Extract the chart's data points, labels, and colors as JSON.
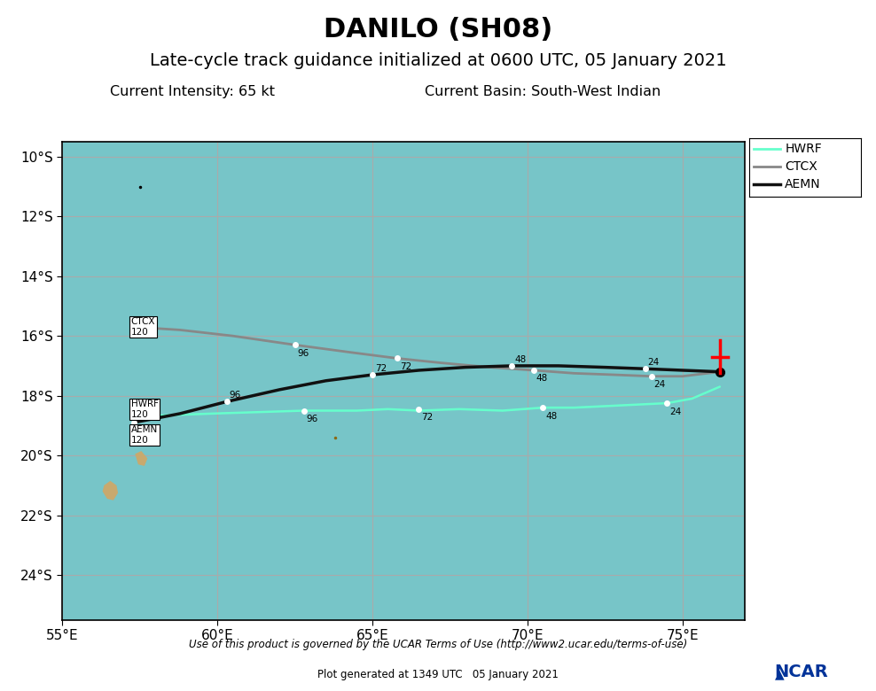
{
  "title": "DANILO (SH08)",
  "subtitle": "Late-cycle track guidance initialized at 0600 UTC, 05 January 2021",
  "intensity_label": "Current Intensity: 65 kt",
  "basin_label": "Current Basin: South-West Indian",
  "footer1": "Use of this product is governed by the UCAR Terms of Use (http://www2.ucar.edu/terms-of-use)",
  "footer2": "Plot generated at 1349 UTC   05 January 2021",
  "xlim": [
    55,
    77
  ],
  "ylim": [
    -25.5,
    -9.5
  ],
  "xticks": [
    55,
    60,
    65,
    70,
    75
  ],
  "yticks": [
    -10,
    -12,
    -14,
    -16,
    -18,
    -20,
    -22,
    -24
  ],
  "bg_color": "#77C5C8",
  "grid_color": "#aaaaaa",
  "HWRF": {
    "lons": [
      57.3,
      58.5,
      59.8,
      61.3,
      62.8,
      64.5,
      65.5,
      66.5,
      67.8,
      69.2,
      70.5,
      71.5,
      72.5,
      73.5,
      74.5,
      75.3,
      76.2
    ],
    "lats": [
      -18.7,
      -18.65,
      -18.6,
      -18.55,
      -18.5,
      -18.5,
      -18.45,
      -18.5,
      -18.45,
      -18.5,
      -18.4,
      -18.4,
      -18.35,
      -18.3,
      -18.25,
      -18.1,
      -17.7
    ],
    "color": "#66FFCC",
    "lw": 1.8,
    "label": "HWRF",
    "hour_lons": [
      57.3,
      62.8,
      66.5,
      70.5,
      74.5
    ],
    "hour_lats": [
      -18.7,
      -18.5,
      -18.45,
      -18.4,
      -18.25
    ],
    "hour_labels": [
      120,
      96,
      72,
      48,
      24
    ],
    "label_offset_x": [
      2,
      2,
      2,
      2,
      2
    ],
    "label_offset_y": [
      -9,
      -9,
      -9,
      -9,
      -9
    ]
  },
  "CTCX": {
    "lons": [
      57.3,
      58.8,
      60.5,
      62.5,
      64.3,
      65.8,
      67.2,
      68.8,
      70.2,
      71.5,
      72.8,
      74.0,
      75.0,
      76.2
    ],
    "lats": [
      -15.7,
      -15.8,
      -16.0,
      -16.3,
      -16.55,
      -16.75,
      -16.9,
      -17.05,
      -17.15,
      -17.25,
      -17.3,
      -17.35,
      -17.35,
      -17.2
    ],
    "color": "#888888",
    "lw": 2.0,
    "label": "CTCX",
    "hour_lons": [
      57.3,
      62.5,
      65.8,
      70.2,
      74.0
    ],
    "hour_lats": [
      -15.7,
      -16.3,
      -16.75,
      -17.15,
      -17.35
    ],
    "hour_labels": [
      120,
      96,
      72,
      48,
      24
    ],
    "label_offset_x": [
      2,
      2,
      2,
      2,
      2
    ],
    "label_offset_y": [
      -9,
      -9,
      -9,
      -9,
      -9
    ]
  },
  "AEMN": {
    "lons": [
      57.3,
      58.8,
      60.3,
      62.0,
      63.5,
      65.0,
      66.5,
      68.0,
      69.5,
      71.0,
      72.5,
      73.8,
      75.0,
      76.2
    ],
    "lats": [
      -18.9,
      -18.6,
      -18.2,
      -17.8,
      -17.5,
      -17.3,
      -17.15,
      -17.05,
      -17.0,
      -17.0,
      -17.05,
      -17.1,
      -17.15,
      -17.2
    ],
    "color": "#111111",
    "lw": 2.5,
    "label": "AEMN",
    "hour_lons": [
      57.3,
      60.3,
      65.0,
      69.5,
      73.8
    ],
    "hour_lats": [
      -18.9,
      -18.2,
      -17.3,
      -17.0,
      -17.1
    ],
    "hour_labels": [
      120,
      96,
      72,
      48,
      24
    ],
    "label_offset_x": [
      2,
      2,
      2,
      2,
      2
    ],
    "label_offset_y": [
      3,
      3,
      3,
      3,
      3
    ]
  },
  "current_pos": {
    "lon": 76.2,
    "lat": -17.2
  },
  "error_bar_lon": 76.2,
  "error_bar_lat": -16.7,
  "error_bar_half_height": 0.55,
  "error_bar_color": "red",
  "island1_lons": [
    56.35,
    56.55,
    56.75,
    56.8,
    56.65,
    56.45,
    56.3,
    56.35
  ],
  "island1_lats": [
    -21.0,
    -20.85,
    -21.0,
    -21.25,
    -21.5,
    -21.45,
    -21.2,
    -21.0
  ],
  "island2_lons": [
    57.35,
    57.55,
    57.75,
    57.65,
    57.45,
    57.35
  ],
  "island2_lats": [
    -19.95,
    -19.85,
    -20.1,
    -20.35,
    -20.3,
    -19.95
  ],
  "land_color": "#C8A96E",
  "small_island_lon": 63.8,
  "small_island_lat": -19.4,
  "tiny_dot_lon": 57.5,
  "tiny_dot_lat": -11.0,
  "title_fontsize": 22,
  "subtitle_fontsize": 14,
  "info_fontsize": 11.5,
  "tick_fontsize": 11,
  "legend_fontsize": 10
}
